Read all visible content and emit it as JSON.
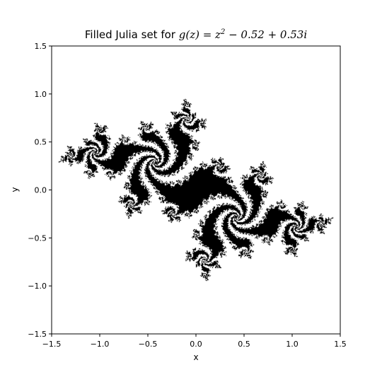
{
  "chart_data": {
    "type": "heatmap",
    "title_prefix": "Filled Julia set for ",
    "title_formula": {
      "lhs": "g(z) = z",
      "exponent": "2",
      "rhs": " − 0.52 + 0.53i"
    },
    "xlabel": "x",
    "ylabel": "y",
    "xlim": [
      -1.5,
      1.5
    ],
    "ylim": [
      -1.5,
      1.5
    ],
    "xticks": [
      -1.5,
      -1.0,
      -0.5,
      0.0,
      0.5,
      1.0,
      1.5
    ],
    "yticks": [
      -1.5,
      -1.0,
      -0.5,
      0.0,
      0.5,
      1.0,
      1.5
    ],
    "xtick_labels": [
      "−1.5",
      "−1.0",
      "−0.5",
      "0.0",
      "0.5",
      "1.0",
      "1.5"
    ],
    "ytick_labels": [
      "−1.5",
      "−1.0",
      "−0.5",
      "0.0",
      "0.5",
      "1.0",
      "1.5"
    ],
    "parameter_c": {
      "re": -0.52,
      "im": 0.53
    },
    "fill_color": "#000000",
    "background_color": "#ffffff",
    "grid": false
  }
}
